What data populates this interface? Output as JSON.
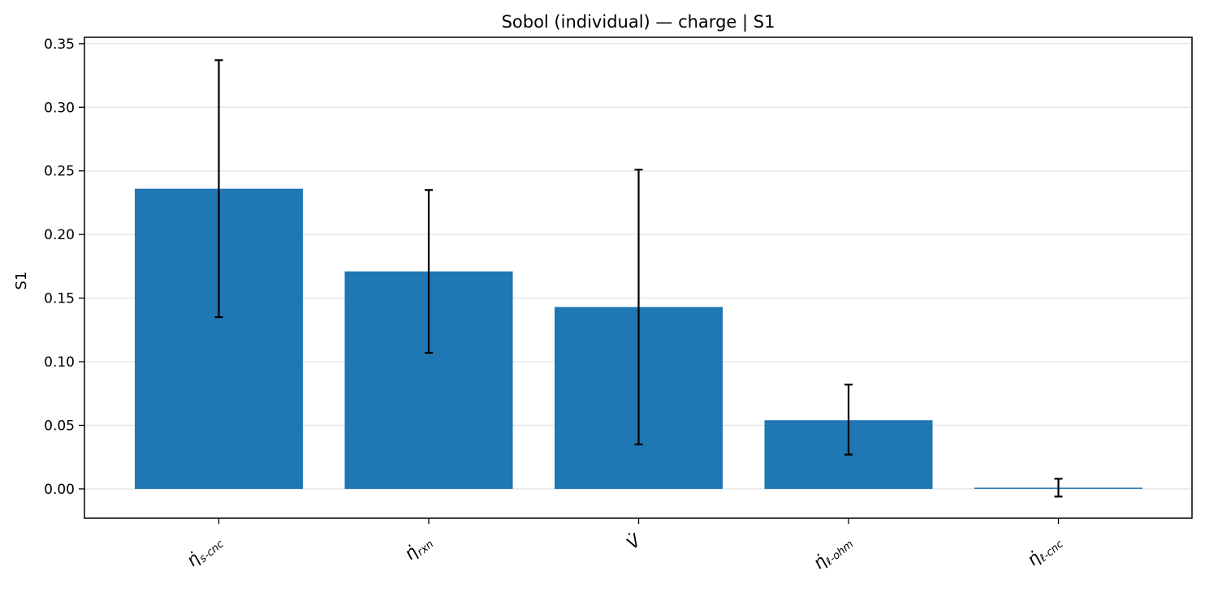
{
  "chart_data": {
    "type": "bar",
    "title": "Sobol (individual) — charge | S1",
    "xlabel": "",
    "ylabel": "S1",
    "ylim": [
      -0.023,
      0.355
    ],
    "yticks": [
      0.0,
      0.05,
      0.1,
      0.15,
      0.2,
      0.25,
      0.3,
      0.35
    ],
    "ytick_labels": [
      "0.00",
      "0.05",
      "0.10",
      "0.15",
      "0.20",
      "0.25",
      "0.30",
      "0.35"
    ],
    "grid": "horizontal",
    "bar_color": "#1f77b4",
    "error_color": "#000000",
    "categories": [
      {
        "base": "η̇",
        "sub": "s-cnc"
      },
      {
        "base": "η̇",
        "sub": "rxn"
      },
      {
        "base": "V̇",
        "sub": ""
      },
      {
        "base": "η̇",
        "sub": "ℓ-ohm"
      },
      {
        "base": "η̇",
        "sub": "ℓ-cnc"
      }
    ],
    "values": [
      0.236,
      0.171,
      0.143,
      0.054,
      0.001
    ],
    "err_low": [
      0.135,
      0.107,
      0.035,
      0.027,
      -0.006
    ],
    "err_high": [
      0.337,
      0.235,
      0.251,
      0.082,
      0.008
    ]
  }
}
